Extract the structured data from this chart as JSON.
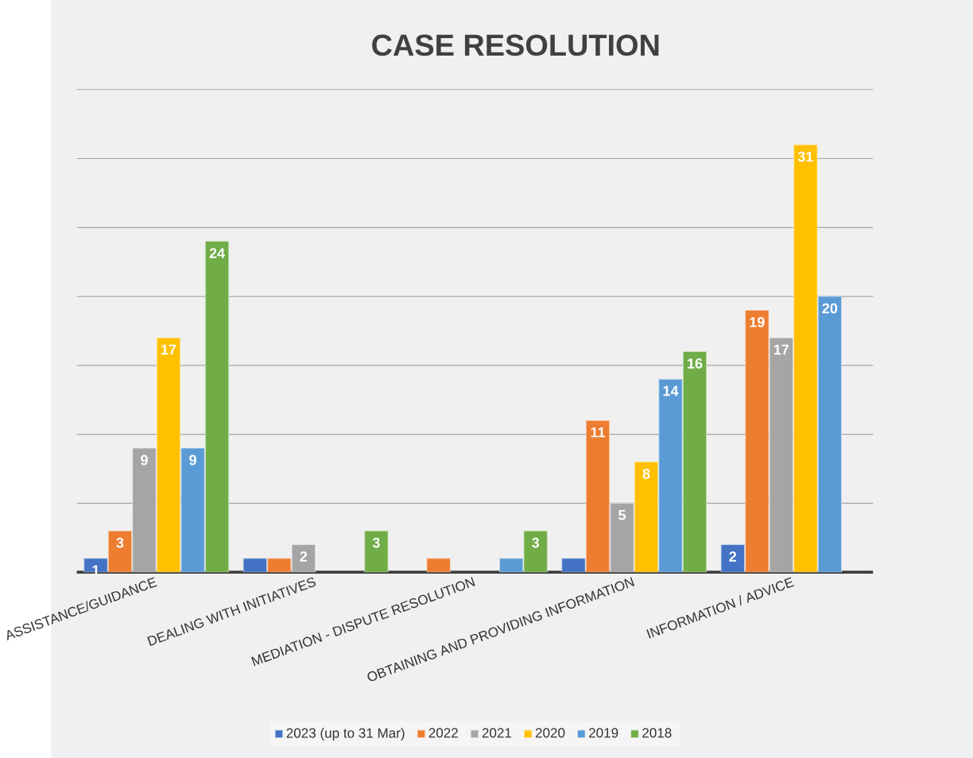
{
  "chart_data": {
    "type": "bar",
    "title": "CASE RESOLUTION",
    "categories": [
      "ASSISTANCE/GUIDANCE",
      "DEALING WITH INITIATIVES",
      "MEDIATION - DISPUTE RESOLUTION",
      "OBTAINING AND PROVIDING INFORMATION",
      "INFORMATION / ADVICE"
    ],
    "series": [
      {
        "name": "2023 (up to 31 Mar)",
        "color": "#4472c4",
        "values": [
          1,
          1,
          null,
          1,
          2
        ],
        "value_labels": [
          "1",
          null,
          null,
          null,
          "2"
        ]
      },
      {
        "name": "2022",
        "color": "#ed7d31",
        "values": [
          3,
          1,
          1,
          11,
          19
        ],
        "value_labels": [
          "3",
          null,
          null,
          "11",
          "19"
        ]
      },
      {
        "name": "2021",
        "color": "#a5a5a5",
        "values": [
          9,
          2,
          null,
          5,
          17
        ],
        "value_labels": [
          "9",
          "2",
          null,
          "5",
          "17"
        ]
      },
      {
        "name": "2020",
        "color": "#ffc000",
        "values": [
          17,
          null,
          null,
          8,
          31
        ],
        "value_labels": [
          "17",
          null,
          null,
          "8",
          "31"
        ]
      },
      {
        "name": "2019",
        "color": "#5b9bd5",
        "values": [
          9,
          null,
          1,
          14,
          20
        ],
        "value_labels": [
          "9",
          null,
          null,
          "14",
          "20"
        ]
      },
      {
        "name": "2018",
        "color": "#70ad47",
        "values": [
          24,
          3,
          3,
          16,
          null
        ],
        "value_labels": [
          "24",
          "3",
          "3",
          "16",
          null
        ]
      }
    ],
    "ylim": [
      0,
      35
    ],
    "yticks": [
      {
        "value": 0,
        "label": null
      },
      {
        "value": 5,
        "label": null
      },
      {
        "value": 10,
        "label": null
      },
      {
        "value": 15,
        "label": null
      },
      {
        "value": 20,
        "label": null
      },
      {
        "value": 25,
        "label": null
      },
      {
        "value": 30,
        "label": null
      },
      {
        "value": 35,
        "label": null
      }
    ],
    "tick_labels": "x",
    "grid": "y",
    "legend": "bottom"
  }
}
